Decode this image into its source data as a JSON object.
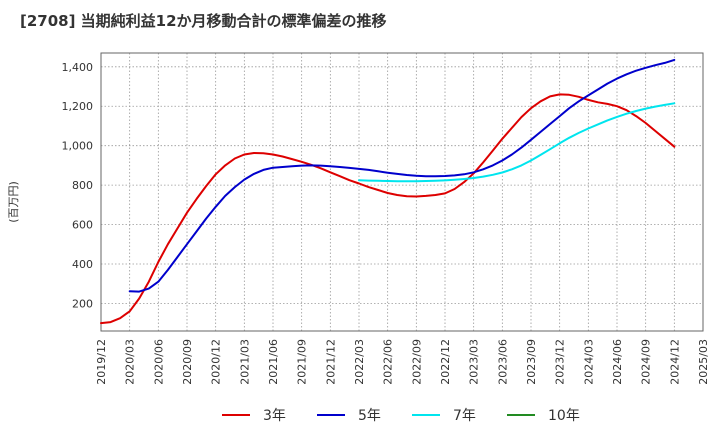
{
  "chart_data": {
    "type": "line",
    "title": "[2708]  当期純利益12か月移動合計の標準偏差の推移",
    "ylabel": "(百万円)",
    "xlabel": "",
    "ylim": [
      60,
      1470
    ],
    "xlim": [
      "2019/12",
      "2025/03"
    ],
    "yticks": [
      200,
      400,
      600,
      800,
      1000,
      1200,
      1400
    ],
    "ytick_labels": [
      "200",
      "400",
      "600",
      "800",
      "1,000",
      "1,200",
      "1,400"
    ],
    "xticks": [
      "2019/12",
      "2020/03",
      "2020/06",
      "2020/09",
      "2020/12",
      "2021/03",
      "2021/06",
      "2021/09",
      "2021/12",
      "2022/03",
      "2022/06",
      "2022/09",
      "2022/12",
      "2023/03",
      "2023/06",
      "2023/09",
      "2023/12",
      "2024/03",
      "2024/06",
      "2024/09",
      "2024/12",
      "2025/03"
    ],
    "grid": true,
    "legend_position": "bottom",
    "series": [
      {
        "name": "3年",
        "color": "#dd0000",
        "points": [
          [
            "2019/12",
            100
          ],
          [
            "2020/01",
            105
          ],
          [
            "2020/02",
            125
          ],
          [
            "2020/03",
            160
          ],
          [
            "2020/04",
            225
          ],
          [
            "2020/05",
            310
          ],
          [
            "2020/06",
            410
          ],
          [
            "2020/07",
            500
          ],
          [
            "2020/08",
            580
          ],
          [
            "2020/09",
            660
          ],
          [
            "2020/10",
            730
          ],
          [
            "2020/11",
            795
          ],
          [
            "2020/12",
            855
          ],
          [
            "2021/01",
            900
          ],
          [
            "2021/02",
            935
          ],
          [
            "2021/03",
            955
          ],
          [
            "2021/04",
            963
          ],
          [
            "2021/05",
            962
          ],
          [
            "2021/06",
            955
          ],
          [
            "2021/07",
            945
          ],
          [
            "2021/08",
            932
          ],
          [
            "2021/09",
            918
          ],
          [
            "2021/10",
            903
          ],
          [
            "2021/11",
            885
          ],
          [
            "2021/12",
            865
          ],
          [
            "2022/01",
            845
          ],
          [
            "2022/02",
            825
          ],
          [
            "2022/03",
            808
          ],
          [
            "2022/04",
            790
          ],
          [
            "2022/05",
            775
          ],
          [
            "2022/06",
            760
          ],
          [
            "2022/07",
            750
          ],
          [
            "2022/08",
            743
          ],
          [
            "2022/09",
            742
          ],
          [
            "2022/10",
            745
          ],
          [
            "2022/11",
            750
          ],
          [
            "2022/12",
            758
          ],
          [
            "2023/01",
            780
          ],
          [
            "2023/02",
            815
          ],
          [
            "2023/03",
            860
          ],
          [
            "2023/04",
            915
          ],
          [
            "2023/05",
            975
          ],
          [
            "2023/06",
            1035
          ],
          [
            "2023/07",
            1090
          ],
          [
            "2023/08",
            1145
          ],
          [
            "2023/09",
            1190
          ],
          [
            "2023/10",
            1225
          ],
          [
            "2023/11",
            1250
          ],
          [
            "2023/12",
            1260
          ],
          [
            "2024/01",
            1258
          ],
          [
            "2024/02",
            1248
          ],
          [
            "2024/03",
            1232
          ],
          [
            "2024/04",
            1220
          ],
          [
            "2024/05",
            1212
          ],
          [
            "2024/06",
            1200
          ],
          [
            "2024/07",
            1180
          ],
          [
            "2024/08",
            1150
          ],
          [
            "2024/09",
            1115
          ],
          [
            "2024/10",
            1075
          ],
          [
            "2024/11",
            1035
          ],
          [
            "2024/12",
            995
          ]
        ]
      },
      {
        "name": "5年",
        "color": "#0000cc",
        "points": [
          [
            "2020/03",
            262
          ],
          [
            "2020/04",
            260
          ],
          [
            "2020/05",
            275
          ],
          [
            "2020/06",
            310
          ],
          [
            "2020/07",
            370
          ],
          [
            "2020/08",
            435
          ],
          [
            "2020/09",
            500
          ],
          [
            "2020/10",
            565
          ],
          [
            "2020/11",
            630
          ],
          [
            "2020/12",
            690
          ],
          [
            "2021/01",
            745
          ],
          [
            "2021/02",
            790
          ],
          [
            "2021/03",
            828
          ],
          [
            "2021/04",
            857
          ],
          [
            "2021/05",
            877
          ],
          [
            "2021/06",
            888
          ],
          [
            "2021/07",
            892
          ],
          [
            "2021/08",
            896
          ],
          [
            "2021/09",
            899
          ],
          [
            "2021/10",
            900
          ],
          [
            "2021/11",
            899
          ],
          [
            "2021/12",
            896
          ],
          [
            "2022/01",
            892
          ],
          [
            "2022/02",
            887
          ],
          [
            "2022/03",
            882
          ],
          [
            "2022/04",
            877
          ],
          [
            "2022/05",
            870
          ],
          [
            "2022/06",
            863
          ],
          [
            "2022/07",
            857
          ],
          [
            "2022/08",
            851
          ],
          [
            "2022/09",
            847
          ],
          [
            "2022/10",
            845
          ],
          [
            "2022/11",
            845
          ],
          [
            "2022/12",
            846
          ],
          [
            "2023/01",
            849
          ],
          [
            "2023/02",
            855
          ],
          [
            "2023/03",
            865
          ],
          [
            "2023/04",
            880
          ],
          [
            "2023/05",
            900
          ],
          [
            "2023/06",
            925
          ],
          [
            "2023/07",
            955
          ],
          [
            "2023/08",
            990
          ],
          [
            "2023/09",
            1030
          ],
          [
            "2023/10",
            1070
          ],
          [
            "2023/11",
            1110
          ],
          [
            "2023/12",
            1150
          ],
          [
            "2024/01",
            1190
          ],
          [
            "2024/02",
            1225
          ],
          [
            "2024/03",
            1255
          ],
          [
            "2024/04",
            1285
          ],
          [
            "2024/05",
            1315
          ],
          [
            "2024/06",
            1340
          ],
          [
            "2024/07",
            1362
          ],
          [
            "2024/08",
            1380
          ],
          [
            "2024/09",
            1395
          ],
          [
            "2024/10",
            1408
          ],
          [
            "2024/11",
            1420
          ],
          [
            "2024/12",
            1435
          ]
        ]
      },
      {
        "name": "7年",
        "color": "#00e5ee",
        "points": [
          [
            "2022/03",
            825
          ],
          [
            "2022/04",
            823
          ],
          [
            "2022/05",
            822
          ],
          [
            "2022/06",
            821
          ],
          [
            "2022/07",
            820
          ],
          [
            "2022/08",
            820
          ],
          [
            "2022/09",
            820
          ],
          [
            "2022/10",
            821
          ],
          [
            "2022/11",
            822
          ],
          [
            "2022/12",
            824
          ],
          [
            "2023/01",
            827
          ],
          [
            "2023/02",
            831
          ],
          [
            "2023/03",
            836
          ],
          [
            "2023/04",
            843
          ],
          [
            "2023/05",
            852
          ],
          [
            "2023/06",
            864
          ],
          [
            "2023/07",
            880
          ],
          [
            "2023/08",
            900
          ],
          [
            "2023/09",
            925
          ],
          [
            "2023/10",
            953
          ],
          [
            "2023/11",
            982
          ],
          [
            "2023/12",
            1012
          ],
          [
            "2024/01",
            1040
          ],
          [
            "2024/02",
            1065
          ],
          [
            "2024/03",
            1087
          ],
          [
            "2024/04",
            1108
          ],
          [
            "2024/05",
            1128
          ],
          [
            "2024/06",
            1146
          ],
          [
            "2024/07",
            1162
          ],
          [
            "2024/08",
            1176
          ],
          [
            "2024/09",
            1188
          ],
          [
            "2024/10",
            1198
          ],
          [
            "2024/11",
            1207
          ],
          [
            "2024/12",
            1215
          ]
        ]
      },
      {
        "name": "10年",
        "color": "#228b22",
        "points": []
      }
    ]
  }
}
